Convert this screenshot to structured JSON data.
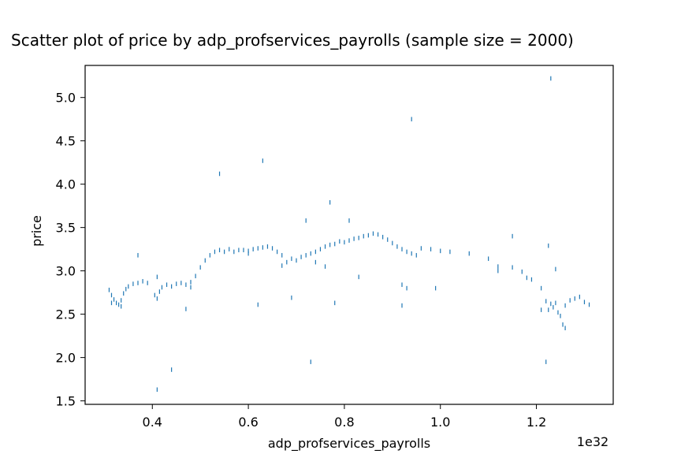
{
  "chart_data": {
    "type": "scatter",
    "title": "Scatter plot of price by adp_profservices_payrolls (sample size = 2000)",
    "xlabel": "adp_profservices_payrolls",
    "ylabel": "price",
    "x_scale_label": "1e32",
    "xlim": [
      0.26,
      1.36
    ],
    "ylim": [
      1.46,
      5.37
    ],
    "xticks": [
      0.4,
      0.6,
      0.8,
      1.0,
      1.2
    ],
    "xtick_labels": [
      "0.4",
      "0.6",
      "0.8",
      "1.0",
      "1.2"
    ],
    "yticks": [
      1.5,
      2.0,
      2.5,
      3.0,
      3.5,
      4.0,
      4.5,
      5.0
    ],
    "ytick_labels": [
      "1.5",
      "2.0",
      "2.5",
      "3.0",
      "3.5",
      "4.0",
      "4.5",
      "5.0"
    ],
    "grid": false,
    "marker_color": "#1f77b4",
    "series": [
      {
        "points": [
          [
            0.31,
            2.78
          ],
          [
            0.315,
            2.72
          ],
          [
            0.32,
            2.67
          ],
          [
            0.325,
            2.63
          ],
          [
            0.33,
            2.61
          ],
          [
            0.335,
            2.66
          ],
          [
            0.34,
            2.74
          ],
          [
            0.345,
            2.79
          ],
          [
            0.35,
            2.82
          ],
          [
            0.36,
            2.85
          ],
          [
            0.37,
            2.86
          ],
          [
            0.38,
            2.88
          ],
          [
            0.39,
            2.86
          ],
          [
            0.405,
            2.72
          ],
          [
            0.41,
            2.68
          ],
          [
            0.415,
            2.76
          ],
          [
            0.42,
            2.81
          ],
          [
            0.43,
            2.84
          ],
          [
            0.44,
            2.82
          ],
          [
            0.45,
            2.85
          ],
          [
            0.46,
            2.86
          ],
          [
            0.47,
            2.84
          ],
          [
            0.48,
            2.87
          ],
          [
            0.49,
            2.94
          ],
          [
            0.5,
            3.04
          ],
          [
            0.51,
            3.12
          ],
          [
            0.52,
            3.18
          ],
          [
            0.53,
            3.22
          ],
          [
            0.54,
            3.24
          ],
          [
            0.55,
            3.22
          ],
          [
            0.56,
            3.25
          ],
          [
            0.57,
            3.22
          ],
          [
            0.58,
            3.24
          ],
          [
            0.59,
            3.24
          ],
          [
            0.6,
            3.23
          ],
          [
            0.61,
            3.25
          ],
          [
            0.62,
            3.26
          ],
          [
            0.63,
            3.27
          ],
          [
            0.64,
            3.28
          ],
          [
            0.65,
            3.26
          ],
          [
            0.66,
            3.22
          ],
          [
            0.67,
            3.18
          ],
          [
            0.68,
            3.1
          ],
          [
            0.69,
            3.14
          ],
          [
            0.7,
            3.12
          ],
          [
            0.71,
            3.16
          ],
          [
            0.72,
            3.18
          ],
          [
            0.73,
            3.2
          ],
          [
            0.74,
            3.22
          ],
          [
            0.75,
            3.25
          ],
          [
            0.76,
            3.28
          ],
          [
            0.77,
            3.3
          ],
          [
            0.78,
            3.31
          ],
          [
            0.79,
            3.34
          ],
          [
            0.8,
            3.33
          ],
          [
            0.81,
            3.35
          ],
          [
            0.82,
            3.37
          ],
          [
            0.83,
            3.38
          ],
          [
            0.84,
            3.4
          ],
          [
            0.85,
            3.41
          ],
          [
            0.86,
            3.43
          ],
          [
            0.87,
            3.42
          ],
          [
            0.88,
            3.39
          ],
          [
            0.89,
            3.36
          ],
          [
            0.9,
            3.32
          ],
          [
            0.91,
            3.28
          ],
          [
            0.92,
            3.25
          ],
          [
            0.93,
            3.22
          ],
          [
            0.94,
            3.2
          ],
          [
            0.96,
            3.26
          ],
          [
            0.98,
            3.25
          ],
          [
            1.0,
            3.23
          ],
          [
            1.02,
            3.22
          ],
          [
            1.06,
            3.2
          ],
          [
            1.1,
            3.14
          ],
          [
            1.12,
            3.05
          ],
          [
            1.15,
            3.04
          ],
          [
            1.17,
            2.99
          ],
          [
            1.19,
            2.9
          ],
          [
            1.21,
            2.8
          ],
          [
            1.22,
            2.65
          ],
          [
            1.225,
            2.55
          ],
          [
            1.23,
            2.62
          ],
          [
            1.235,
            2.58
          ],
          [
            1.24,
            2.63
          ],
          [
            1.245,
            2.52
          ],
          [
            1.25,
            2.48
          ],
          [
            1.255,
            2.38
          ],
          [
            1.26,
            2.6
          ],
          [
            1.27,
            2.66
          ],
          [
            1.28,
            2.68
          ],
          [
            1.29,
            2.7
          ],
          [
            1.3,
            2.64
          ],
          [
            1.31,
            2.61
          ],
          [
            0.37,
            3.18
          ],
          [
            0.41,
            1.63
          ],
          [
            0.44,
            1.86
          ],
          [
            0.47,
            2.56
          ],
          [
            0.54,
            4.12
          ],
          [
            0.62,
            2.61
          ],
          [
            0.63,
            4.27
          ],
          [
            0.69,
            2.69
          ],
          [
            0.73,
            1.95
          ],
          [
            0.72,
            3.58
          ],
          [
            0.77,
            3.79
          ],
          [
            0.78,
            2.63
          ],
          [
            0.81,
            3.58
          ],
          [
            0.83,
            2.93
          ],
          [
            0.92,
            2.6
          ],
          [
            0.94,
            4.75
          ],
          [
            0.99,
            2.8
          ],
          [
            1.15,
            3.4
          ],
          [
            1.22,
            1.95
          ],
          [
            1.23,
            5.22
          ],
          [
            1.24,
            3.02
          ],
          [
            1.225,
            3.29
          ],
          [
            0.315,
            2.63
          ],
          [
            0.335,
            2.59
          ],
          [
            0.41,
            2.93
          ],
          [
            0.48,
            2.81
          ],
          [
            0.6,
            3.2
          ],
          [
            0.67,
            3.06
          ],
          [
            0.74,
            3.1
          ],
          [
            0.76,
            3.05
          ],
          [
            0.92,
            2.84
          ],
          [
            0.93,
            2.8
          ],
          [
            0.95,
            3.18
          ],
          [
            1.12,
            3.0
          ],
          [
            1.18,
            2.92
          ],
          [
            1.26,
            2.34
          ],
          [
            1.21,
            2.55
          ]
        ]
      }
    ]
  }
}
